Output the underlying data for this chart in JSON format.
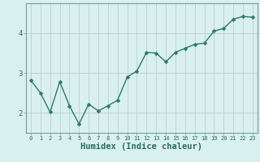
{
  "x": [
    0,
    1,
    2,
    3,
    4,
    5,
    6,
    7,
    8,
    9,
    10,
    11,
    12,
    13,
    14,
    15,
    16,
    17,
    18,
    19,
    20,
    21,
    22,
    23
  ],
  "y": [
    2.82,
    2.5,
    2.02,
    2.78,
    2.18,
    1.72,
    2.22,
    2.05,
    2.18,
    2.32,
    2.9,
    3.05,
    3.52,
    3.5,
    3.28,
    3.52,
    3.62,
    3.72,
    3.75,
    4.05,
    4.12,
    4.35,
    4.42,
    4.4
  ],
  "line_color": "#2d7a6a",
  "marker": "D",
  "markersize": 2.5,
  "linewidth": 1.0,
  "xlabel": "Humidex (Indice chaleur)",
  "xlabel_fontsize": 7.5,
  "bg_color": "#d8f0ee",
  "grid_color": "#c0cece",
  "spine_color": "#7a9a98",
  "tick_color": "#2d6b5e",
  "ylim": [
    1.5,
    4.75
  ],
  "xlim": [
    -0.5,
    23.5
  ],
  "yticks": [
    2,
    3,
    4
  ],
  "xticks": [
    0,
    1,
    2,
    3,
    4,
    5,
    6,
    7,
    8,
    9,
    10,
    11,
    12,
    13,
    14,
    15,
    16,
    17,
    18,
    19,
    20,
    21,
    22,
    23
  ]
}
